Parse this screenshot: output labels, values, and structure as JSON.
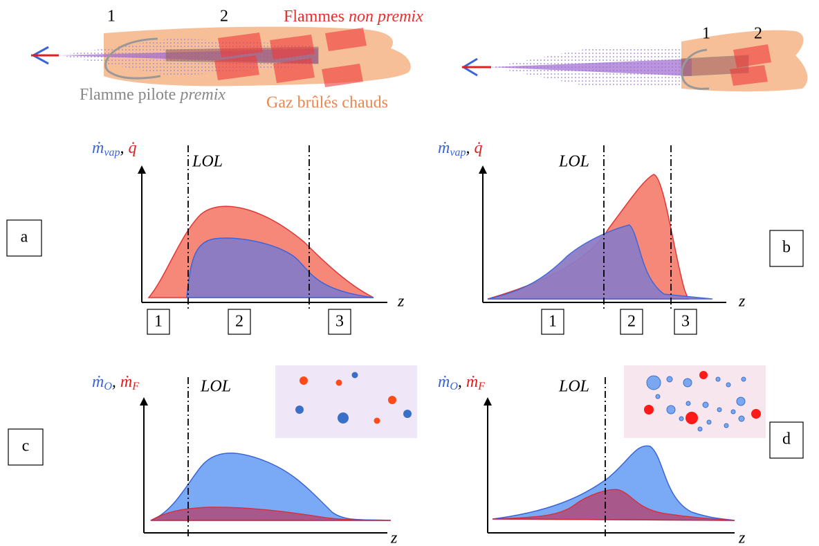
{
  "top": {
    "left": {
      "marker1": "1",
      "marker2": "2",
      "flame_label": [
        "Flammes ",
        "non premix"
      ],
      "pilot_label": [
        "Flamme pilote ",
        "premix"
      ],
      "burnt_gas_label": "Gaz brûlés chauds"
    },
    "right": {
      "marker1": "1",
      "marker2": "2"
    }
  },
  "panels": [
    {
      "id": "a",
      "y_label": [
        "ṁ",
        "vap",
        ", ",
        "q̇"
      ],
      "lol": "LOL",
      "x_label": "z",
      "zones": [
        "1",
        "2",
        "3"
      ]
    },
    {
      "id": "b",
      "y_label": [
        "ṁ",
        "vap",
        ", ",
        "q̇"
      ],
      "lol": "LOL",
      "x_label": "z",
      "zones": [
        "1",
        "2",
        "3"
      ]
    },
    {
      "id": "c",
      "y_label": [
        "ṁ",
        "O",
        ", ",
        "ṁ",
        "F"
      ],
      "lol": "LOL",
      "x_label": "z"
    },
    {
      "id": "d",
      "y_label": [
        "ṁ",
        "O",
        ", ",
        "ṁ",
        "F"
      ],
      "lol": "LOL",
      "x_label": "z"
    }
  ]
}
